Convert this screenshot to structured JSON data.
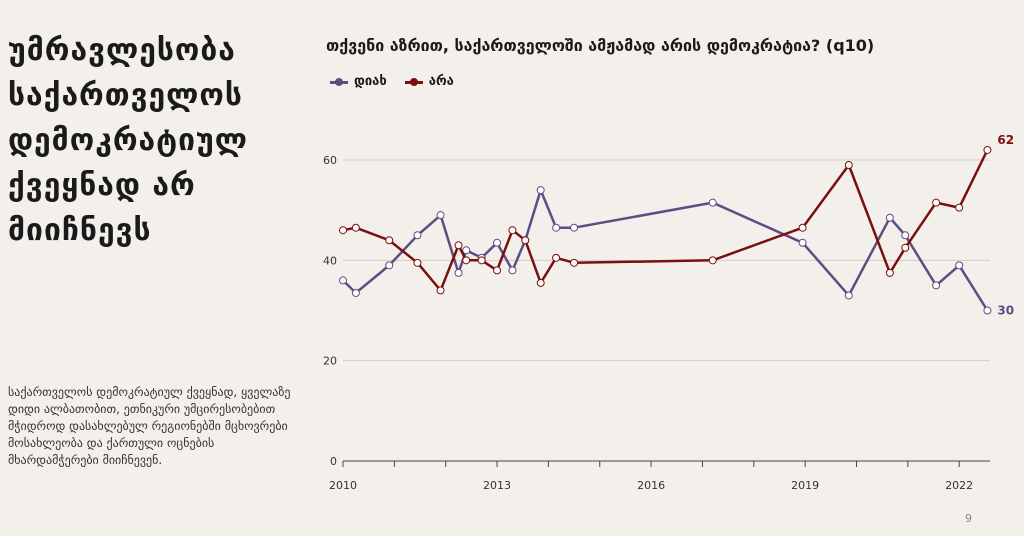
{
  "headline": "უმრავლესობა საქართველოს დემოკრატიულ ქვეყნად არ მიიჩნევს",
  "note": "საქართველოს დემოკრატიულ ქვეყნად, ყველაზე დიდი ალბათობით, ეთნიკური უმცირესობებით მჭიდროდ დასახლებულ რეგიონებში მცხოვრები მოსახლეობა და ქართული ოცნების მხარდამჭერები მიიჩნევენ.",
  "page_number": "9",
  "colors": {
    "yes": "#5e4d82",
    "no": "#7b0f0f",
    "grid": "#d2cfca"
  },
  "chart_data": {
    "type": "line",
    "title": "თქვენი აზრით, საქართველოში ამჟამად არის დემოკრატია? (q10)",
    "xlabel": "",
    "ylabel": "",
    "xlim": [
      2010,
      2022.6
    ],
    "ylim": [
      0,
      62
    ],
    "x_ticks": [
      "2010",
      "2013",
      "2016",
      "2019",
      "2022"
    ],
    "y_ticks": [
      "0",
      "20",
      "40",
      "60"
    ],
    "legend_position": "top-left",
    "grid": true,
    "series": [
      {
        "name": "დიახ",
        "key": "yes",
        "end_label": "30",
        "points": [
          [
            2010.0,
            36
          ],
          [
            2010.25,
            33.5
          ],
          [
            2010.9,
            39
          ],
          [
            2011.45,
            45
          ],
          [
            2011.9,
            49
          ],
          [
            2012.25,
            37.5
          ],
          [
            2012.4,
            42
          ],
          [
            2012.7,
            40.5
          ],
          [
            2013.0,
            43.5
          ],
          [
            2013.3,
            38
          ],
          [
            2013.55,
            44
          ],
          [
            2013.85,
            54
          ],
          [
            2014.15,
            46.5
          ],
          [
            2014.5,
            46.5
          ],
          [
            2017.2,
            51.5
          ],
          [
            2018.95,
            43.5
          ],
          [
            2019.85,
            33
          ],
          [
            2020.65,
            48.5
          ],
          [
            2020.95,
            45
          ],
          [
            2021.55,
            35
          ],
          [
            2022.0,
            39
          ],
          [
            2022.55,
            30
          ]
        ]
      },
      {
        "name": "არა",
        "key": "no",
        "end_label": "62",
        "points": [
          [
            2010.0,
            46
          ],
          [
            2010.25,
            46.5
          ],
          [
            2010.9,
            44
          ],
          [
            2011.45,
            39.5
          ],
          [
            2011.9,
            34
          ],
          [
            2012.25,
            43
          ],
          [
            2012.4,
            40
          ],
          [
            2012.7,
            40
          ],
          [
            2013.0,
            38
          ],
          [
            2013.3,
            46
          ],
          [
            2013.55,
            44
          ],
          [
            2013.85,
            35.5
          ],
          [
            2014.15,
            40.5
          ],
          [
            2014.5,
            39.5
          ],
          [
            2017.2,
            40
          ],
          [
            2018.95,
            46.5
          ],
          [
            2019.85,
            59
          ],
          [
            2020.65,
            37.5
          ],
          [
            2020.95,
            42.5
          ],
          [
            2021.55,
            51.5
          ],
          [
            2022.0,
            50.5
          ],
          [
            2022.55,
            62
          ]
        ]
      }
    ]
  }
}
